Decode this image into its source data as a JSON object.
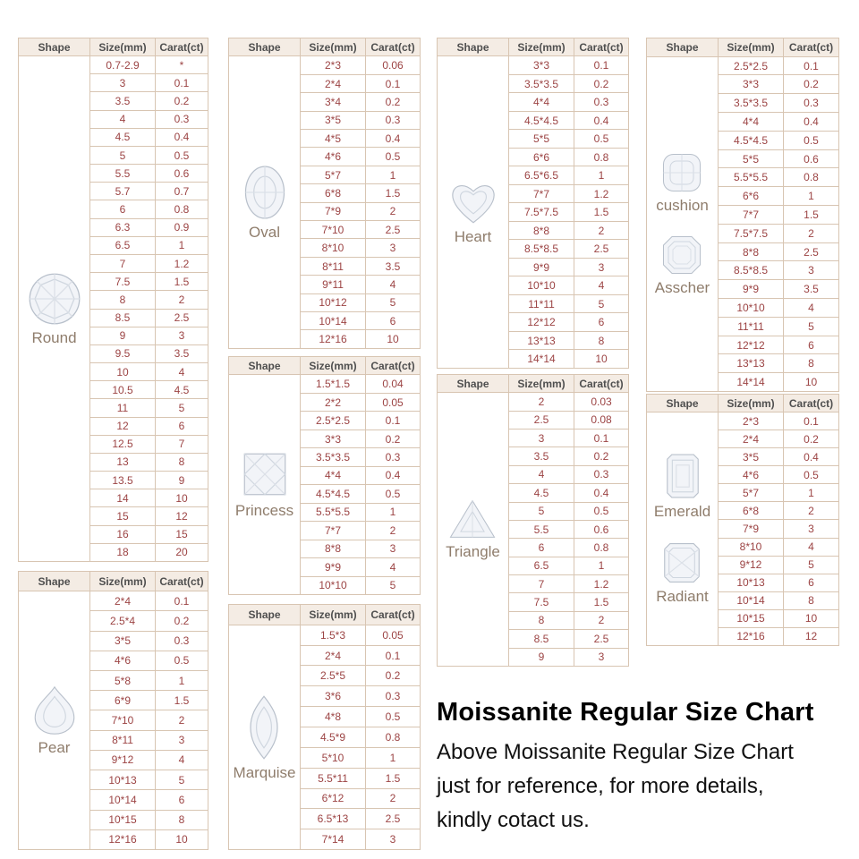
{
  "chart_data": {
    "type": "table",
    "title": "Moissanite Regular Size Chart",
    "columns": [
      "Shape",
      "Size(mm)",
      "Carat(ct)"
    ],
    "tables": {
      "round": {
        "labels": [
          "Round"
        ],
        "rows": [
          [
            "0.7-2.9",
            "*"
          ],
          [
            "3",
            "0.1"
          ],
          [
            "3.5",
            "0.2"
          ],
          [
            "4",
            "0.3"
          ],
          [
            "4.5",
            "0.4"
          ],
          [
            "5",
            "0.5"
          ],
          [
            "5.5",
            "0.6"
          ],
          [
            "5.7",
            "0.7"
          ],
          [
            "6",
            "0.8"
          ],
          [
            "6.3",
            "0.9"
          ],
          [
            "6.5",
            "1"
          ],
          [
            "7",
            "1.2"
          ],
          [
            "7.5",
            "1.5"
          ],
          [
            "8",
            "2"
          ],
          [
            "8.5",
            "2.5"
          ],
          [
            "9",
            "3"
          ],
          [
            "9.5",
            "3.5"
          ],
          [
            "10",
            "4"
          ],
          [
            "10.5",
            "4.5"
          ],
          [
            "11",
            "5"
          ],
          [
            "12",
            "6"
          ],
          [
            "12.5",
            "7"
          ],
          [
            "13",
            "8"
          ],
          [
            "13.5",
            "9"
          ],
          [
            "14",
            "10"
          ],
          [
            "15",
            "12"
          ],
          [
            "16",
            "15"
          ],
          [
            "18",
            "20"
          ]
        ]
      },
      "oval": {
        "labels": [
          "Oval"
        ],
        "rows": [
          [
            "2*3",
            "0.06"
          ],
          [
            "2*4",
            "0.1"
          ],
          [
            "3*4",
            "0.2"
          ],
          [
            "3*5",
            "0.3"
          ],
          [
            "4*5",
            "0.4"
          ],
          [
            "4*6",
            "0.5"
          ],
          [
            "5*7",
            "1"
          ],
          [
            "6*8",
            "1.5"
          ],
          [
            "7*9",
            "2"
          ],
          [
            "7*10",
            "2.5"
          ],
          [
            "8*10",
            "3"
          ],
          [
            "8*11",
            "3.5"
          ],
          [
            "9*11",
            "4"
          ],
          [
            "10*12",
            "5"
          ],
          [
            "10*14",
            "6"
          ],
          [
            "12*16",
            "10"
          ]
        ]
      },
      "heart": {
        "labels": [
          "Heart"
        ],
        "rows": [
          [
            "3*3",
            "0.1"
          ],
          [
            "3.5*3.5",
            "0.2"
          ],
          [
            "4*4",
            "0.3"
          ],
          [
            "4.5*4.5",
            "0.4"
          ],
          [
            "5*5",
            "0.5"
          ],
          [
            "6*6",
            "0.8"
          ],
          [
            "6.5*6.5",
            "1"
          ],
          [
            "7*7",
            "1.2"
          ],
          [
            "7.5*7.5",
            "1.5"
          ],
          [
            "8*8",
            "2"
          ],
          [
            "8.5*8.5",
            "2.5"
          ],
          [
            "9*9",
            "3"
          ],
          [
            "10*10",
            "4"
          ],
          [
            "11*11",
            "5"
          ],
          [
            "12*12",
            "6"
          ],
          [
            "13*13",
            "8"
          ],
          [
            "14*14",
            "10"
          ]
        ]
      },
      "cushion_asscher": {
        "labels": [
          "cushion",
          "Asscher"
        ],
        "rows": [
          [
            "2.5*2.5",
            "0.1"
          ],
          [
            "3*3",
            "0.2"
          ],
          [
            "3.5*3.5",
            "0.3"
          ],
          [
            "4*4",
            "0.4"
          ],
          [
            "4.5*4.5",
            "0.5"
          ],
          [
            "5*5",
            "0.6"
          ],
          [
            "5.5*5.5",
            "0.8"
          ],
          [
            "6*6",
            "1"
          ],
          [
            "7*7",
            "1.5"
          ],
          [
            "7.5*7.5",
            "2"
          ],
          [
            "8*8",
            "2.5"
          ],
          [
            "8.5*8.5",
            "3"
          ],
          [
            "9*9",
            "3.5"
          ],
          [
            "10*10",
            "4"
          ],
          [
            "11*11",
            "5"
          ],
          [
            "12*12",
            "6"
          ],
          [
            "13*13",
            "8"
          ],
          [
            "14*14",
            "10"
          ]
        ]
      },
      "princess": {
        "labels": [
          "Princess"
        ],
        "rows": [
          [
            "1.5*1.5",
            "0.04"
          ],
          [
            "2*2",
            "0.05"
          ],
          [
            "2.5*2.5",
            "0.1"
          ],
          [
            "3*3",
            "0.2"
          ],
          [
            "3.5*3.5",
            "0.3"
          ],
          [
            "4*4",
            "0.4"
          ],
          [
            "4.5*4.5",
            "0.5"
          ],
          [
            "5.5*5.5",
            "1"
          ],
          [
            "7*7",
            "2"
          ],
          [
            "8*8",
            "3"
          ],
          [
            "9*9",
            "4"
          ],
          [
            "10*10",
            "5"
          ]
        ]
      },
      "triangle": {
        "labels": [
          "Triangle"
        ],
        "rows": [
          [
            "2",
            "0.03"
          ],
          [
            "2.5",
            "0.08"
          ],
          [
            "3",
            "0.1"
          ],
          [
            "3.5",
            "0.2"
          ],
          [
            "4",
            "0.3"
          ],
          [
            "4.5",
            "0.4"
          ],
          [
            "5",
            "0.5"
          ],
          [
            "5.5",
            "0.6"
          ],
          [
            "6",
            "0.8"
          ],
          [
            "6.5",
            "1"
          ],
          [
            "7",
            "1.2"
          ],
          [
            "7.5",
            "1.5"
          ],
          [
            "8",
            "2"
          ],
          [
            "8.5",
            "2.5"
          ],
          [
            "9",
            "3"
          ]
        ]
      },
      "pear": {
        "labels": [
          "Pear"
        ],
        "rows": [
          [
            "2*4",
            "0.1"
          ],
          [
            "2.5*4",
            "0.2"
          ],
          [
            "3*5",
            "0.3"
          ],
          [
            "4*6",
            "0.5"
          ],
          [
            "5*8",
            "1"
          ],
          [
            "6*9",
            "1.5"
          ],
          [
            "7*10",
            "2"
          ],
          [
            "8*11",
            "3"
          ],
          [
            "9*12",
            "4"
          ],
          [
            "10*13",
            "5"
          ],
          [
            "10*14",
            "6"
          ],
          [
            "10*15",
            "8"
          ],
          [
            "12*16",
            "10"
          ]
        ]
      },
      "marquise": {
        "labels": [
          "Marquise"
        ],
        "rows": [
          [
            "1.5*3",
            "0.05"
          ],
          [
            "2*4",
            "0.1"
          ],
          [
            "2.5*5",
            "0.2"
          ],
          [
            "3*6",
            "0.3"
          ],
          [
            "4*8",
            "0.5"
          ],
          [
            "4.5*9",
            "0.8"
          ],
          [
            "5*10",
            "1"
          ],
          [
            "5.5*11",
            "1.5"
          ],
          [
            "6*12",
            "2"
          ],
          [
            "6.5*13",
            "2.5"
          ],
          [
            "7*14",
            "3"
          ]
        ]
      },
      "emerald_radiant": {
        "labels": [
          "Emerald",
          "Radiant"
        ],
        "rows": [
          [
            "2*3",
            "0.1"
          ],
          [
            "2*4",
            "0.2"
          ],
          [
            "3*5",
            "0.4"
          ],
          [
            "4*6",
            "0.5"
          ],
          [
            "5*7",
            "1"
          ],
          [
            "6*8",
            "2"
          ],
          [
            "7*9",
            "3"
          ],
          [
            "8*10",
            "4"
          ],
          [
            "9*12",
            "5"
          ],
          [
            "10*13",
            "6"
          ],
          [
            "10*14",
            "8"
          ],
          [
            "10*15",
            "10"
          ],
          [
            "12*16",
            "12"
          ]
        ]
      }
    }
  },
  "footer": {
    "title": "Moissanite Regular Size Chart",
    "lines": [
      "Above Moissanite Regular Size Chart",
      "just for reference, for more details,",
      "kindly cotact us."
    ]
  },
  "colors": {
    "table_border": "#d8c5b2",
    "header_bg": "#f4ece4",
    "value_text": "#9c4444",
    "label_text": "#8f7d6c"
  }
}
